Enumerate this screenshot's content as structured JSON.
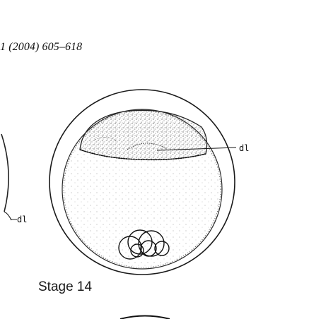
{
  "page": {
    "header_citation": "1 (2004) 605–618"
  },
  "figure": {
    "stage_label": "Stage 14",
    "label_right": "dl",
    "label_left": "dl"
  }
}
